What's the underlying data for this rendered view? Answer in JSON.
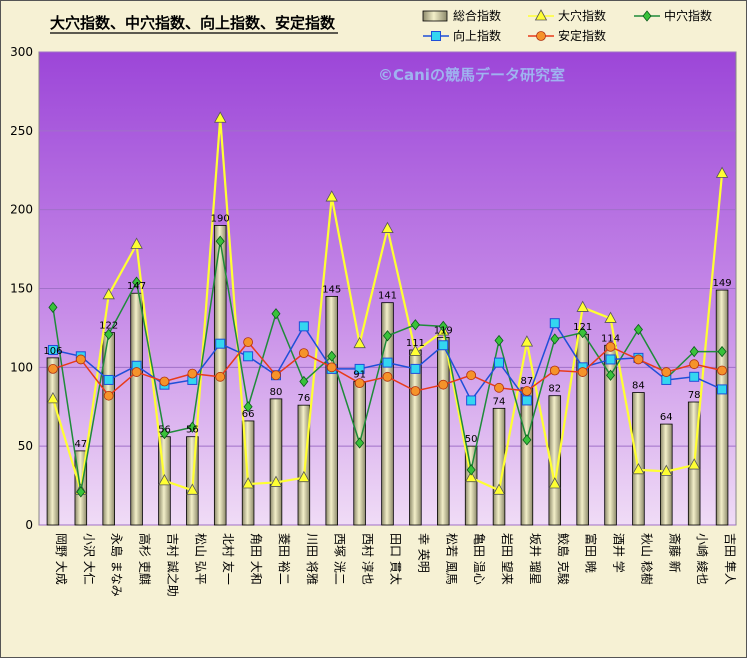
{
  "chart_data": {
    "type": "bar",
    "title": "大穴指数、中穴指数、向上指数、安定指数",
    "watermark": "©Caniの競馬データ研究室",
    "xlabel": "",
    "ylabel": "",
    "ylim": [
      0,
      300
    ],
    "yticks": [
      0,
      50,
      100,
      150,
      200,
      250,
      300
    ],
    "grid": true,
    "legend_position": "top-right",
    "categories": [
      "岡野 大成",
      "小沢 大仁",
      "永島 まなみ",
      "高杉 吏麒",
      "吉村 誠之助",
      "松山 弘平",
      "北村 友一",
      "角田 大和",
      "菱田 裕二",
      "川田 将雅",
      "西塚 洸二",
      "西村 淳也",
      "田口 貫太",
      "幸 英明",
      "松若 風馬",
      "亀田 温心",
      "岩田 望来",
      "坂井 瑠星",
      "鮫島 克駿",
      "富田 暁",
      "酒井 学",
      "秋山 稔樹",
      "斎藤 新",
      "小崎 綾也",
      "吉田 隼人"
    ],
    "series": [
      {
        "name": "総合指数",
        "kind": "bar",
        "color": "#e3deb0",
        "values": [
          106,
          47,
          122,
          147,
          56,
          56,
          190,
          66,
          80,
          76,
          145,
          91,
          141,
          111,
          119,
          50,
          74,
          87,
          82,
          121,
          114,
          84,
          64,
          78,
          149
        ]
      },
      {
        "name": "大穴指数",
        "kind": "line",
        "color": "#ffff33",
        "marker": "triangle",
        "values": [
          80,
          22,
          146,
          178,
          28,
          22,
          258,
          26,
          27,
          30,
          208,
          115,
          188,
          110,
          123,
          30,
          22,
          116,
          26,
          138,
          131,
          35,
          34,
          38,
          223
        ]
      },
      {
        "name": "中穴指数",
        "kind": "line",
        "color": "#1f8b3a",
        "marker": "diamond",
        "values": [
          138,
          21,
          121,
          154,
          58,
          62,
          180,
          75,
          134,
          91,
          107,
          52,
          120,
          127,
          126,
          35,
          117,
          54,
          118,
          122,
          95,
          124,
          93,
          110,
          110
        ]
      },
      {
        "name": "向上指数",
        "kind": "line",
        "color": "#1f4fd8",
        "marker": "square",
        "values": [
          111,
          107,
          92,
          101,
          89,
          92,
          115,
          107,
          95,
          126,
          99,
          99,
          103,
          99,
          114,
          79,
          103,
          79,
          128,
          100,
          105,
          106,
          92,
          94,
          86
        ]
      },
      {
        "name": "安定指数",
        "kind": "line",
        "color": "#e83a1a",
        "marker": "circle",
        "values": [
          99,
          105,
          82,
          97,
          91,
          96,
          94,
          116,
          95,
          109,
          100,
          90,
          94,
          85,
          89,
          95,
          87,
          85,
          98,
          97,
          113,
          105,
          97,
          102,
          98
        ]
      }
    ],
    "bar_labels": [
      106,
      47,
      122,
      147,
      56,
      56,
      190,
      66,
      80,
      76,
      145,
      91,
      141,
      111,
      119,
      50,
      74,
      87,
      82,
      121,
      114,
      84,
      64,
      78,
      149
    ]
  }
}
